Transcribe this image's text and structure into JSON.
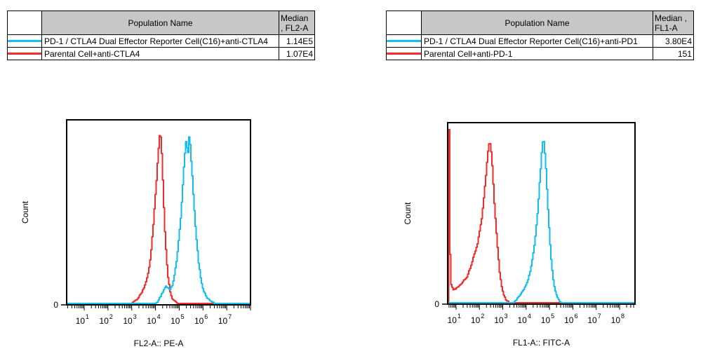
{
  "panels": [
    {
      "table": {
        "population_header": "Population Name",
        "median_header_line1": "Median",
        "median_header_line2": ", FL2-A",
        "rows": [
          {
            "color": "#12BEF0",
            "label": "PD-1 / CTLA4 Dual Effector Reporter Cell(C16)+anti-CTLA4",
            "median": "1.14E5"
          },
          {
            "color": "#F02B2B",
            "label": "Parental Cell+anti-CTLA4",
            "median": "1.07E4"
          }
        ]
      }
    },
    {
      "table": {
        "population_header": "Population Name",
        "median_header_line1": "Median ,",
        "median_header_line2": "FL1-A",
        "rows": [
          {
            "color": "#12BEF0",
            "label": "PD-1 / CTLA4 Dual Effector Reporter Cell(C16)+anti-PD1",
            "median": "3.80E4"
          },
          {
            "color": "#F02B2B",
            "label": "Parental Cell+anti-PD-1",
            "median": "151"
          }
        ]
      }
    }
  ],
  "chart_data": [
    {
      "type": "line",
      "subtype": "flow-cytometry-histogram",
      "xlabel": "FL2-A:: PE-A",
      "ylabel": "Count",
      "x_scale": "log10",
      "x_range_log10": [
        0.26,
        8.0
      ],
      "x_decade_tick_labels": [
        "10^1",
        "10^2",
        "10^3",
        "10^4",
        "10^5",
        "10^6",
        "10^7"
      ],
      "labeled_decades": [
        1,
        2,
        3,
        4,
        5,
        6,
        7
      ],
      "y_tick_labels": [
        "0"
      ],
      "grid": false,
      "legend_position": "table-above",
      "series": [
        {
          "name": "Parental Cell+anti-CTLA4",
          "color": "#F02B2B",
          "median": "1.07E4",
          "points_log10x_vs_fraction": [
            [
              2.9,
              0
            ],
            [
              3.1,
              0.01
            ],
            [
              3.25,
              0.03
            ],
            [
              3.4,
              0.06
            ],
            [
              3.55,
              0.1
            ],
            [
              3.7,
              0.18
            ],
            [
              3.8,
              0.28
            ],
            [
              3.9,
              0.44
            ],
            [
              4.0,
              0.62
            ],
            [
              4.08,
              0.78
            ],
            [
              4.13,
              0.88
            ],
            [
              4.18,
              0.936
            ],
            [
              4.23,
              0.87
            ],
            [
              4.3,
              0.64
            ],
            [
              4.37,
              0.42
            ],
            [
              4.44,
              0.26
            ],
            [
              4.52,
              0.13
            ],
            [
              4.62,
              0.05
            ],
            [
              4.72,
              0.02
            ],
            [
              4.85,
              0.005
            ],
            [
              5.0,
              0
            ]
          ]
        },
        {
          "name": "PD-1 / CTLA4 Dual Effector Reporter Cell(C16)+anti-CTLA4",
          "color": "#12BEF0",
          "median": "1.14E5",
          "points_log10x_vs_fraction": [
            [
              3.95,
              0
            ],
            [
              4.07,
              0.01
            ],
            [
              4.2,
              0.04
            ],
            [
              4.32,
              0.07
            ],
            [
              4.42,
              0.095
            ],
            [
              4.5,
              0.085
            ],
            [
              4.6,
              0.075
            ],
            [
              4.7,
              0.1
            ],
            [
              4.8,
              0.17
            ],
            [
              4.9,
              0.26
            ],
            [
              5.0,
              0.4
            ],
            [
              5.07,
              0.5
            ],
            [
              5.15,
              0.68
            ],
            [
              5.22,
              0.82
            ],
            [
              5.27,
              0.88
            ],
            [
              5.32,
              0.84
            ],
            [
              5.36,
              0.81
            ],
            [
              5.4,
              0.9
            ],
            [
              5.45,
              0.86
            ],
            [
              5.52,
              0.72
            ],
            [
              5.6,
              0.55
            ],
            [
              5.7,
              0.36
            ],
            [
              5.8,
              0.22
            ],
            [
              5.9,
              0.13
            ],
            [
              6.0,
              0.07
            ],
            [
              6.15,
              0.03
            ],
            [
              6.35,
              0.008
            ],
            [
              6.5,
              0
            ]
          ]
        }
      ]
    },
    {
      "type": "line",
      "subtype": "flow-cytometry-histogram",
      "xlabel": "FL1-A:: FITC-A",
      "ylabel": "Count",
      "x_scale": "log10",
      "x_range_log10": [
        0.64,
        8.66
      ],
      "x_decade_tick_labels": [
        "10^1",
        "10^2",
        "10^3",
        "10^4",
        "10^5",
        "10^6",
        "10^7",
        "10^8"
      ],
      "labeled_decades": [
        1,
        2,
        3,
        4,
        5,
        6,
        7,
        8
      ],
      "y_tick_labels": [
        "0"
      ],
      "grid": false,
      "legend_position": "table-above",
      "series": [
        {
          "name": "Parental Cell+anti-PD-1",
          "color": "#F02B2B",
          "median": "151",
          "points_log10x_vs_fraction": [
            [
              0.64,
              0
            ],
            [
              0.645,
              0.97
            ],
            [
              0.695,
              0.97
            ],
            [
              0.72,
              0.32
            ],
            [
              0.76,
              0.11
            ],
            [
              0.85,
              0.075
            ],
            [
              0.95,
              0.075
            ],
            [
              1.05,
              0.09
            ],
            [
              1.15,
              0.095
            ],
            [
              1.3,
              0.12
            ],
            [
              1.45,
              0.145
            ],
            [
              1.58,
              0.19
            ],
            [
              1.7,
              0.24
            ],
            [
              1.8,
              0.28
            ],
            [
              1.9,
              0.33
            ],
            [
              2.0,
              0.4
            ],
            [
              2.08,
              0.47
            ],
            [
              2.16,
              0.57
            ],
            [
              2.24,
              0.68
            ],
            [
              2.3,
              0.77
            ],
            [
              2.36,
              0.85
            ],
            [
              2.42,
              0.89
            ],
            [
              2.48,
              0.85
            ],
            [
              2.54,
              0.74
            ],
            [
              2.6,
              0.6
            ],
            [
              2.68,
              0.44
            ],
            [
              2.76,
              0.3
            ],
            [
              2.84,
              0.18
            ],
            [
              2.93,
              0.09
            ],
            [
              3.03,
              0.04
            ],
            [
              3.14,
              0.012
            ],
            [
              3.28,
              0
            ]
          ]
        },
        {
          "name": "PD-1 / CTLA4 Dual Effector Reporter Cell(C16)+anti-PD1",
          "color": "#12BEF0",
          "median": "3.80E4",
          "points_log10x_vs_fraction": [
            [
              3.4,
              0
            ],
            [
              3.55,
              0.015
            ],
            [
              3.7,
              0.04
            ],
            [
              3.85,
              0.07
            ],
            [
              4.0,
              0.1
            ],
            [
              4.15,
              0.17
            ],
            [
              4.3,
              0.28
            ],
            [
              4.42,
              0.42
            ],
            [
              4.52,
              0.58
            ],
            [
              4.6,
              0.74
            ],
            [
              4.67,
              0.86
            ],
            [
              4.72,
              0.91
            ],
            [
              4.77,
              0.87
            ],
            [
              4.84,
              0.72
            ],
            [
              4.92,
              0.52
            ],
            [
              5.0,
              0.34
            ],
            [
              5.08,
              0.2
            ],
            [
              5.17,
              0.1
            ],
            [
              5.27,
              0.045
            ],
            [
              5.38,
              0.015
            ],
            [
              5.5,
              0
            ]
          ]
        }
      ]
    }
  ]
}
